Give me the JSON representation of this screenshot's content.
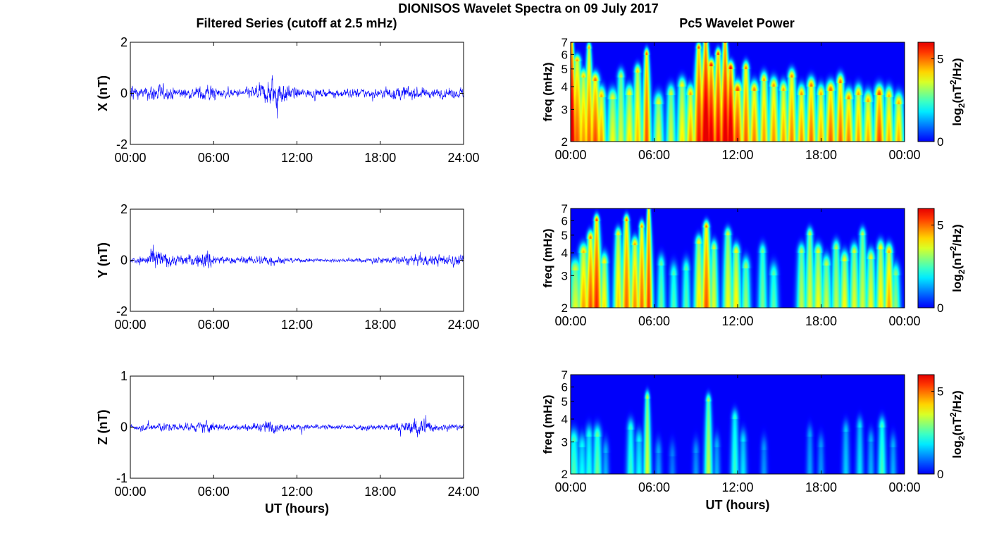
{
  "figure": {
    "title": "DIONISOS Wavelet Spectra on 09 July 2017",
    "left_title": "Filtered Series (cutoff at 2.5 mHz)",
    "right_title": "Pc5 Wavelet Power",
    "xlabel": "UT (hours)"
  },
  "chart_data": [
    {
      "type": "line",
      "panel": "X",
      "title": "Filtered Series (cutoff at 2.5 mHz)",
      "ylabel": "X (nT)",
      "xlabel": "",
      "xlim": [
        0,
        24
      ],
      "ylim": [
        -2,
        2
      ],
      "xtick_values": [
        0,
        6,
        12,
        18,
        24
      ],
      "xtick_labels": [
        "00:00",
        "06:00",
        "12:00",
        "18:00",
        "24:00"
      ],
      "ytick_values": [
        -2,
        0,
        2
      ],
      "ytick_labels": [
        "-2",
        "0",
        "2"
      ],
      "color": "#0000ff",
      "envelope": {
        "hours": [
          0,
          0.1,
          0.3,
          1,
          1.8,
          2.3,
          3.5,
          4.5,
          5.5,
          6.3,
          7,
          8,
          9,
          9.8,
          10.3,
          10.7,
          11.3,
          12,
          13,
          14,
          15,
          16,
          17,
          18,
          19,
          19.8,
          20.3,
          21,
          22,
          23,
          24
        ],
        "amplitude_nT": [
          0.3,
          1.4,
          0.5,
          0.45,
          0.9,
          0.6,
          0.45,
          0.4,
          0.8,
          0.45,
          0.3,
          0.35,
          0.6,
          0.9,
          1.5,
          1.2,
          0.7,
          0.45,
          0.35,
          0.3,
          0.35,
          0.4,
          0.4,
          0.4,
          0.5,
          0.6,
          0.55,
          0.45,
          0.4,
          0.4,
          0.4
        ]
      }
    },
    {
      "type": "line",
      "panel": "Y",
      "ylabel": "Y (nT)",
      "xlabel": "",
      "xlim": [
        0,
        24
      ],
      "ylim": [
        -2,
        2
      ],
      "xtick_values": [
        0,
        6,
        12,
        18,
        24
      ],
      "xtick_labels": [
        "00:00",
        "06:00",
        "12:00",
        "18:00",
        "24:00"
      ],
      "ytick_values": [
        -2,
        0,
        2
      ],
      "ytick_labels": [
        "-2",
        "0",
        "2"
      ],
      "color": "#0000ff",
      "envelope": {
        "hours": [
          0,
          1,
          1.8,
          2.2,
          3,
          4,
          5,
          5.6,
          6.3,
          7,
          8,
          9,
          10,
          10.6,
          11.5,
          13,
          15,
          17,
          19,
          20,
          21,
          22,
          23,
          24
        ],
        "amplitude_nT": [
          0.3,
          0.35,
          1.1,
          0.8,
          0.45,
          0.45,
          0.55,
          0.9,
          0.4,
          0.3,
          0.3,
          0.35,
          0.55,
          0.35,
          0.2,
          0.15,
          0.15,
          0.2,
          0.3,
          0.4,
          0.45,
          0.45,
          0.45,
          0.4
        ]
      }
    },
    {
      "type": "line",
      "panel": "Z",
      "ylabel": "Z (nT)",
      "xlabel": "UT (hours)",
      "xlim": [
        0,
        24
      ],
      "ylim": [
        -1,
        1
      ],
      "xtick_values": [
        0,
        6,
        12,
        18,
        24
      ],
      "xtick_labels": [
        "00:00",
        "06:00",
        "12:00",
        "18:00",
        "24:00"
      ],
      "ytick_values": [
        -1,
        0,
        1
      ],
      "ytick_labels": [
        "-1",
        "0",
        "1"
      ],
      "color": "#0000ff",
      "envelope": {
        "hours": [
          0,
          1,
          2,
          3,
          4,
          5,
          5.5,
          6.5,
          8,
          9.5,
          10,
          10.5,
          12,
          14,
          16,
          18,
          19.5,
          20.3,
          20.8,
          21.3,
          22,
          23,
          24
        ],
        "amplitude_nT": [
          0.12,
          0.15,
          0.2,
          0.17,
          0.15,
          0.18,
          0.28,
          0.14,
          0.12,
          0.18,
          0.3,
          0.18,
          0.12,
          0.1,
          0.12,
          0.13,
          0.18,
          0.3,
          0.5,
          0.35,
          0.15,
          0.14,
          0.13
        ]
      }
    },
    {
      "type": "heatmap",
      "panel": "X",
      "title": "Pc5 Wavelet Power",
      "ylabel": "freq (mHz)",
      "xlabel": "",
      "xlim": [
        0,
        24
      ],
      "ylim": [
        2,
        7
      ],
      "yscale": "log",
      "xtick_values": [
        0,
        6,
        12,
        18,
        24
      ],
      "xtick_labels": [
        "00:00",
        "06:00",
        "12:00",
        "18:00",
        "00:00"
      ],
      "ytick_values": [
        2,
        3,
        4,
        5,
        6,
        7
      ],
      "ytick_labels": [
        "2",
        "3",
        "4",
        "5",
        "6",
        "7"
      ],
      "colorbar": {
        "min": 0,
        "max": 6,
        "tick_values": [
          0,
          5
        ],
        "tick_labels": [
          "0",
          "5"
        ],
        "label_main": "log",
        "label_sub": "2",
        "label_mid": "(nT",
        "label_sup": "2",
        "label_end": "/Hz)",
        "colormap": "jet"
      },
      "bursts": [
        {
          "t": 0.05,
          "w": 0.14,
          "p": 6.0,
          "fmax": 7
        },
        {
          "t": 0.45,
          "w": 0.18,
          "p": 4.7,
          "fmax": 5.5
        },
        {
          "t": 0.9,
          "w": 0.15,
          "p": 4.2,
          "fmax": 4.5
        },
        {
          "t": 1.3,
          "w": 0.14,
          "p": 4.6,
          "fmax": 6.5
        },
        {
          "t": 1.75,
          "w": 0.16,
          "p": 5.0,
          "fmax": 4.3
        },
        {
          "t": 2.2,
          "w": 0.14,
          "p": 4.4,
          "fmax": 3.5
        },
        {
          "t": 3.0,
          "w": 0.16,
          "p": 3.8,
          "fmax": 3.4
        },
        {
          "t": 3.6,
          "w": 0.14,
          "p": 3.5,
          "fmax": 4.5
        },
        {
          "t": 4.2,
          "w": 0.15,
          "p": 4.0,
          "fmax": 3.6
        },
        {
          "t": 4.8,
          "w": 0.14,
          "p": 4.3,
          "fmax": 4.8
        },
        {
          "t": 5.45,
          "w": 0.13,
          "p": 5.2,
          "fmax": 6.0
        },
        {
          "t": 6.3,
          "w": 0.15,
          "p": 3.8,
          "fmax": 3.2
        },
        {
          "t": 7.2,
          "w": 0.14,
          "p": 3.6,
          "fmax": 3.6
        },
        {
          "t": 8.0,
          "w": 0.15,
          "p": 4.0,
          "fmax": 4.0
        },
        {
          "t": 8.6,
          "w": 0.14,
          "p": 4.5,
          "fmax": 3.6
        },
        {
          "t": 9.2,
          "w": 0.16,
          "p": 5.4,
          "fmax": 6.5
        },
        {
          "t": 9.7,
          "w": 0.18,
          "p": 6.0,
          "fmax": 7
        },
        {
          "t": 10.1,
          "w": 0.16,
          "p": 5.6,
          "fmax": 5.2
        },
        {
          "t": 10.6,
          "w": 0.15,
          "p": 5.5,
          "fmax": 6.0
        },
        {
          "t": 11.1,
          "w": 0.16,
          "p": 5.8,
          "fmax": 7
        },
        {
          "t": 11.5,
          "w": 0.15,
          "p": 5.9,
          "fmax": 5.0
        },
        {
          "t": 12.0,
          "w": 0.16,
          "p": 5.3,
          "fmax": 3.8
        },
        {
          "t": 12.6,
          "w": 0.14,
          "p": 5.0,
          "fmax": 5.0
        },
        {
          "t": 13.2,
          "w": 0.15,
          "p": 4.8,
          "fmax": 3.8
        },
        {
          "t": 13.9,
          "w": 0.14,
          "p": 4.6,
          "fmax": 4.3
        },
        {
          "t": 14.6,
          "w": 0.15,
          "p": 4.7,
          "fmax": 4.0
        },
        {
          "t": 15.3,
          "w": 0.14,
          "p": 4.5,
          "fmax": 3.8
        },
        {
          "t": 15.9,
          "w": 0.15,
          "p": 4.8,
          "fmax": 4.5
        },
        {
          "t": 16.6,
          "w": 0.14,
          "p": 4.7,
          "fmax": 3.6
        },
        {
          "t": 17.3,
          "w": 0.15,
          "p": 5.0,
          "fmax": 4.0
        },
        {
          "t": 18.0,
          "w": 0.14,
          "p": 4.5,
          "fmax": 3.6
        },
        {
          "t": 18.7,
          "w": 0.16,
          "p": 5.1,
          "fmax": 3.8
        },
        {
          "t": 19.4,
          "w": 0.14,
          "p": 5.0,
          "fmax": 4.2
        },
        {
          "t": 20.0,
          "w": 0.15,
          "p": 4.8,
          "fmax": 3.4
        },
        {
          "t": 20.7,
          "w": 0.14,
          "p": 4.6,
          "fmax": 3.6
        },
        {
          "t": 21.4,
          "w": 0.15,
          "p": 4.5,
          "fmax": 3.3
        },
        {
          "t": 22.2,
          "w": 0.16,
          "p": 5.3,
          "fmax": 3.6
        },
        {
          "t": 22.9,
          "w": 0.14,
          "p": 4.4,
          "fmax": 3.5
        },
        {
          "t": 23.6,
          "w": 0.15,
          "p": 4.5,
          "fmax": 3.2
        }
      ]
    },
    {
      "type": "heatmap",
      "panel": "Y",
      "ylabel": "freq (mHz)",
      "xlabel": "",
      "xlim": [
        0,
        24
      ],
      "ylim": [
        2,
        7
      ],
      "yscale": "log",
      "xtick_values": [
        0,
        6,
        12,
        18,
        24
      ],
      "xtick_labels": [
        "00:00",
        "06:00",
        "12:00",
        "18:00",
        "00:00"
      ],
      "ytick_values": [
        2,
        3,
        4,
        5,
        6,
        7
      ],
      "ytick_labels": [
        "2",
        "3",
        "4",
        "5",
        "6",
        "7"
      ],
      "colorbar": {
        "min": 0,
        "max": 6,
        "tick_values": [
          0,
          5
        ],
        "tick_labels": [
          "0",
          "5"
        ],
        "label_main": "log",
        "label_sub": "2",
        "label_mid": "(nT",
        "label_sup": "2",
        "label_end": "/Hz)",
        "colormap": "jet"
      },
      "bursts": [
        {
          "t": 0.3,
          "w": 0.18,
          "p": 3.6,
          "fmax": 3.2
        },
        {
          "t": 0.9,
          "w": 0.16,
          "p": 4.4,
          "fmax": 4.0
        },
        {
          "t": 1.4,
          "w": 0.14,
          "p": 4.9,
          "fmax": 4.8
        },
        {
          "t": 1.85,
          "w": 0.15,
          "p": 5.4,
          "fmax": 6.0
        },
        {
          "t": 2.4,
          "w": 0.13,
          "p": 4.0,
          "fmax": 3.5
        },
        {
          "t": 3.4,
          "w": 0.14,
          "p": 4.2,
          "fmax": 5.0
        },
        {
          "t": 4.0,
          "w": 0.15,
          "p": 5.0,
          "fmax": 6.0
        },
        {
          "t": 4.6,
          "w": 0.14,
          "p": 4.6,
          "fmax": 4.4
        },
        {
          "t": 5.1,
          "w": 0.13,
          "p": 4.9,
          "fmax": 5.5
        },
        {
          "t": 5.6,
          "w": 0.12,
          "p": 5.3,
          "fmax": 7
        },
        {
          "t": 6.5,
          "w": 0.12,
          "p": 2.8,
          "fmax": 3.4
        },
        {
          "t": 7.4,
          "w": 0.12,
          "p": 2.6,
          "fmax": 3.0
        },
        {
          "t": 8.3,
          "w": 0.12,
          "p": 2.7,
          "fmax": 3.2
        },
        {
          "t": 9.2,
          "w": 0.14,
          "p": 4.0,
          "fmax": 4.5
        },
        {
          "t": 9.75,
          "w": 0.15,
          "p": 5.1,
          "fmax": 5.5
        },
        {
          "t": 10.3,
          "w": 0.13,
          "p": 3.6,
          "fmax": 4.2
        },
        {
          "t": 11.3,
          "w": 0.15,
          "p": 3.8,
          "fmax": 5.0
        },
        {
          "t": 11.9,
          "w": 0.14,
          "p": 4.0,
          "fmax": 4.0
        },
        {
          "t": 12.6,
          "w": 0.13,
          "p": 3.2,
          "fmax": 3.3
        },
        {
          "t": 13.8,
          "w": 0.13,
          "p": 2.9,
          "fmax": 4.0
        },
        {
          "t": 14.6,
          "w": 0.13,
          "p": 2.7,
          "fmax": 3.0
        },
        {
          "t": 16.6,
          "w": 0.14,
          "p": 3.4,
          "fmax": 4.0
        },
        {
          "t": 17.2,
          "w": 0.14,
          "p": 3.6,
          "fmax": 5.0
        },
        {
          "t": 17.8,
          "w": 0.15,
          "p": 3.8,
          "fmax": 4.0
        },
        {
          "t": 18.4,
          "w": 0.14,
          "p": 3.5,
          "fmax": 3.4
        },
        {
          "t": 19.1,
          "w": 0.14,
          "p": 3.4,
          "fmax": 4.2
        },
        {
          "t": 19.7,
          "w": 0.14,
          "p": 3.9,
          "fmax": 3.6
        },
        {
          "t": 20.4,
          "w": 0.14,
          "p": 3.7,
          "fmax": 4.0
        },
        {
          "t": 21.0,
          "w": 0.14,
          "p": 3.5,
          "fmax": 5.0
        },
        {
          "t": 21.6,
          "w": 0.14,
          "p": 3.8,
          "fmax": 3.7
        },
        {
          "t": 22.3,
          "w": 0.14,
          "p": 4.0,
          "fmax": 4.2
        },
        {
          "t": 22.9,
          "w": 0.14,
          "p": 4.5,
          "fmax": 4.0
        },
        {
          "t": 23.4,
          "w": 0.13,
          "p": 3.0,
          "fmax": 3.0
        }
      ]
    },
    {
      "type": "heatmap",
      "panel": "Z",
      "ylabel": "freq (mHz)",
      "xlabel": "UT (hours)",
      "xlim": [
        0,
        24
      ],
      "ylim": [
        2,
        7
      ],
      "yscale": "log",
      "xtick_values": [
        0,
        6,
        12,
        18,
        24
      ],
      "xtick_labels": [
        "00:00",
        "06:00",
        "12:00",
        "18:00",
        "00:00"
      ],
      "ytick_values": [
        2,
        3,
        4,
        5,
        6,
        7
      ],
      "ytick_labels": [
        "2",
        "3",
        "4",
        "5",
        "6",
        "7"
      ],
      "colorbar": {
        "min": 0,
        "max": 6,
        "tick_values": [
          0,
          5
        ],
        "tick_labels": [
          "0",
          "5"
        ],
        "label_main": "log",
        "label_sub": "2",
        "label_mid": "(nT",
        "label_sup": "2",
        "label_end": "/Hz)",
        "colormap": "jet"
      },
      "bursts": [
        {
          "t": 0.2,
          "w": 0.15,
          "p": 2.6,
          "fmax": 3.0
        },
        {
          "t": 0.8,
          "w": 0.13,
          "p": 2.0,
          "fmax": 2.8
        },
        {
          "t": 1.3,
          "w": 0.12,
          "p": 2.2,
          "fmax": 3.2
        },
        {
          "t": 1.9,
          "w": 0.13,
          "p": 2.8,
          "fmax": 3.2
        },
        {
          "t": 2.5,
          "w": 0.1,
          "p": 1.4,
          "fmax": 2.6
        },
        {
          "t": 4.3,
          "w": 0.12,
          "p": 2.4,
          "fmax": 3.5
        },
        {
          "t": 4.9,
          "w": 0.12,
          "p": 2.0,
          "fmax": 3.0
        },
        {
          "t": 5.5,
          "w": 0.11,
          "p": 3.6,
          "fmax": 5.2
        },
        {
          "t": 6.3,
          "w": 0.1,
          "p": 1.3,
          "fmax": 2.6
        },
        {
          "t": 7.3,
          "w": 0.1,
          "p": 1.0,
          "fmax": 2.5
        },
        {
          "t": 9.0,
          "w": 0.1,
          "p": 1.2,
          "fmax": 2.6
        },
        {
          "t": 9.9,
          "w": 0.12,
          "p": 3.4,
          "fmax": 5.0
        },
        {
          "t": 10.5,
          "w": 0.1,
          "p": 1.4,
          "fmax": 2.8
        },
        {
          "t": 11.8,
          "w": 0.12,
          "p": 2.4,
          "fmax": 4.0
        },
        {
          "t": 12.4,
          "w": 0.11,
          "p": 1.8,
          "fmax": 3.0
        },
        {
          "t": 13.9,
          "w": 0.1,
          "p": 1.2,
          "fmax": 2.7
        },
        {
          "t": 17.2,
          "w": 0.1,
          "p": 1.3,
          "fmax": 3.2
        },
        {
          "t": 18.0,
          "w": 0.1,
          "p": 1.2,
          "fmax": 2.8
        },
        {
          "t": 19.8,
          "w": 0.11,
          "p": 1.6,
          "fmax": 3.4
        },
        {
          "t": 20.8,
          "w": 0.11,
          "p": 1.8,
          "fmax": 3.6
        },
        {
          "t": 21.6,
          "w": 0.1,
          "p": 1.4,
          "fmax": 3.0
        },
        {
          "t": 22.4,
          "w": 0.12,
          "p": 2.5,
          "fmax": 3.6
        },
        {
          "t": 23.2,
          "w": 0.1,
          "p": 1.4,
          "fmax": 2.8
        }
      ]
    }
  ]
}
